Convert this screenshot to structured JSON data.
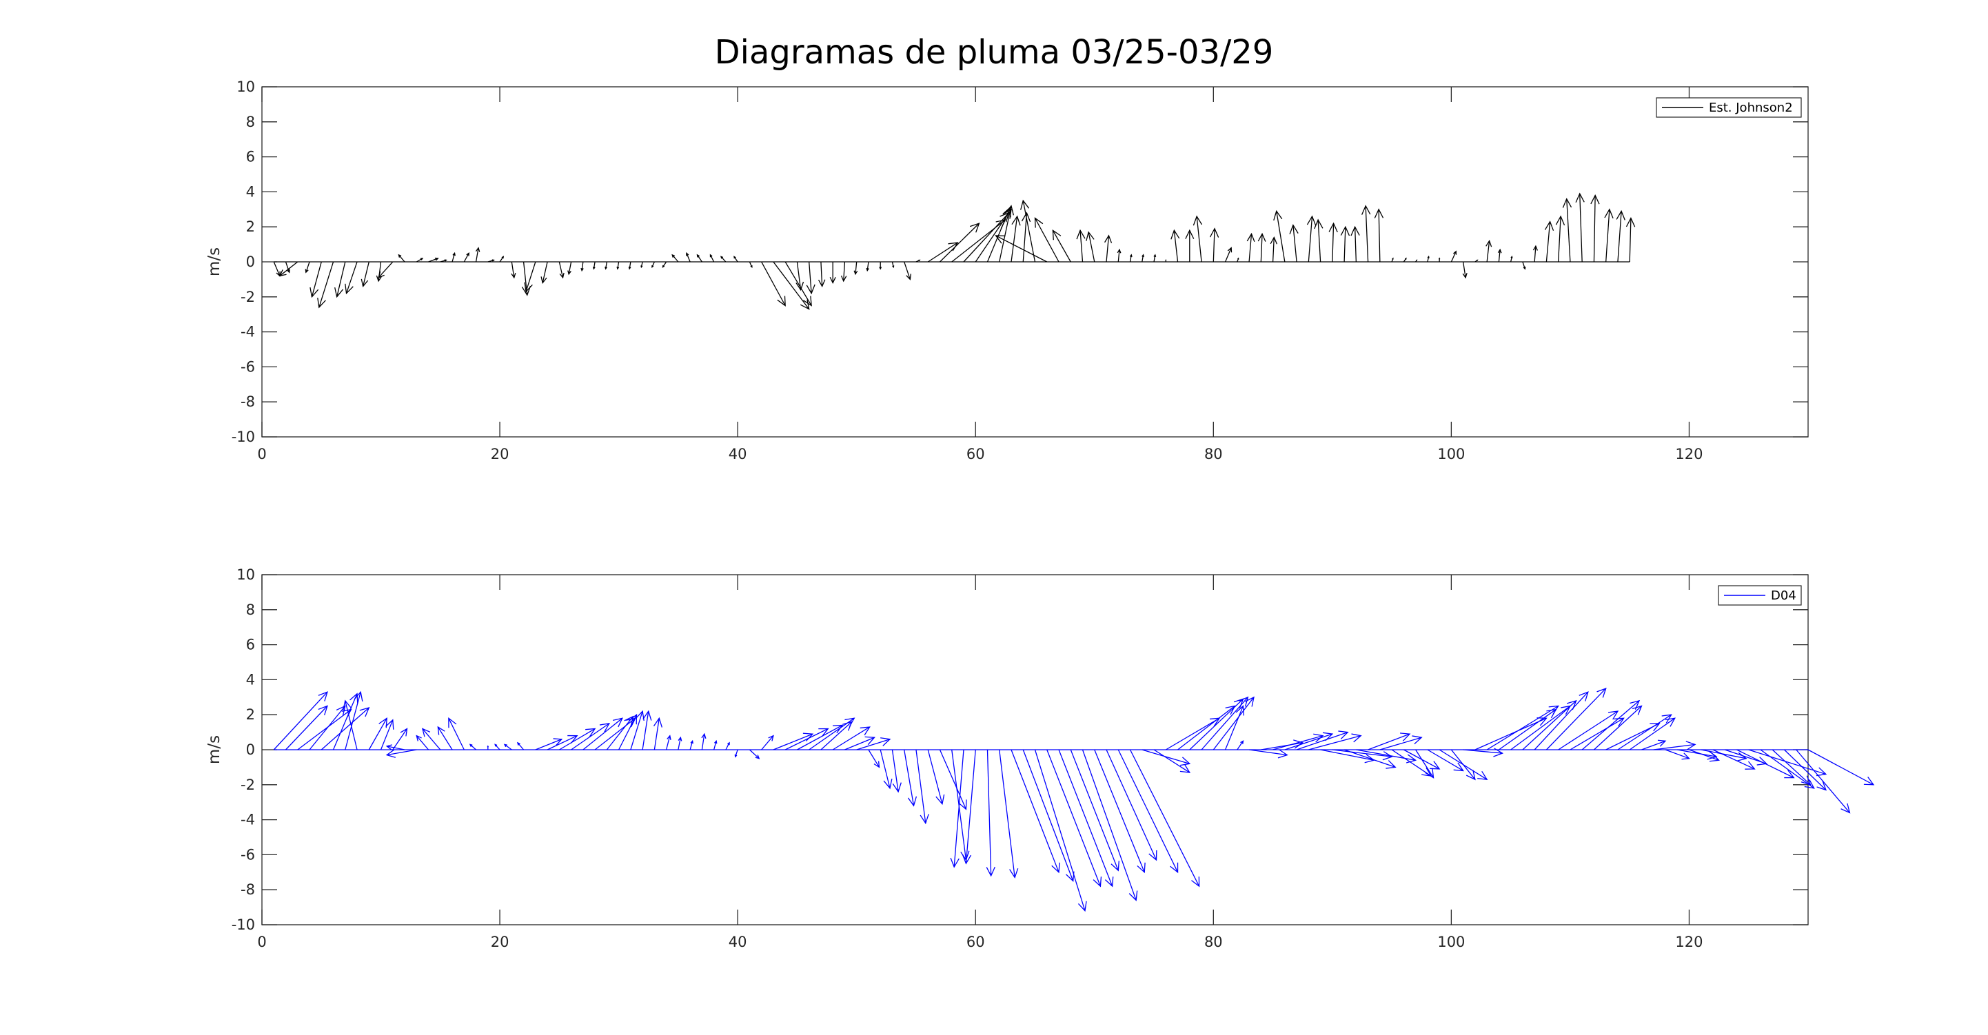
{
  "title": "Diagramas de pluma 03/25-03/29",
  "chart_data": [
    {
      "type": "quiver",
      "ylabel": "m/s",
      "xlim": [
        0,
        130
      ],
      "ylim": [
        -10,
        10
      ],
      "xticks": [
        0,
        20,
        40,
        60,
        80,
        100,
        120
      ],
      "yticks": [
        -10,
        -8,
        -6,
        -4,
        -2,
        0,
        2,
        4,
        6,
        8,
        10
      ],
      "legend": {
        "label": "Est. Johnson2",
        "location": "top-right"
      },
      "color": "#000000",
      "vectors": [
        [
          1,
          0.5,
          -0.8
        ],
        [
          2,
          0.3,
          -0.6
        ],
        [
          3,
          -1.5,
          -0.8
        ],
        [
          4,
          -0.3,
          -0.6
        ],
        [
          5,
          -0.8,
          -2.0
        ],
        [
          6,
          -1.2,
          -2.6
        ],
        [
          7,
          -0.7,
          -2.0
        ],
        [
          8,
          -0.9,
          -1.8
        ],
        [
          9,
          -0.5,
          -1.4
        ],
        [
          10,
          -0.2,
          -1.1
        ],
        [
          11,
          -1.2,
          -0.9
        ],
        [
          12,
          -0.5,
          0.4
        ],
        [
          13,
          0.5,
          0.2
        ],
        [
          14,
          0.8,
          0.2
        ],
        [
          15,
          0.5,
          0.1
        ],
        [
          16,
          0.2,
          0.5
        ],
        [
          17,
          0.4,
          0.5
        ],
        [
          18,
          0.2,
          0.8
        ],
        [
          19,
          0.5,
          0.1
        ],
        [
          20,
          0.3,
          0.3
        ],
        [
          21,
          0.2,
          -0.9
        ],
        [
          22,
          0.3,
          -1.9
        ],
        [
          23,
          -0.8,
          -1.7
        ],
        [
          24,
          -0.4,
          -1.2
        ],
        [
          25,
          0.3,
          -0.9
        ],
        [
          26,
          -0.2,
          -0.7
        ],
        [
          27,
          -0.1,
          -0.5
        ],
        [
          28,
          -0.1,
          -0.4
        ],
        [
          29,
          -0.1,
          -0.4
        ],
        [
          30,
          -0.1,
          -0.4
        ],
        [
          31,
          -0.1,
          -0.4
        ],
        [
          32,
          -0.1,
          -0.3
        ],
        [
          33,
          -0.2,
          -0.3
        ],
        [
          34,
          -0.3,
          -0.3
        ],
        [
          35,
          -0.5,
          0.4
        ],
        [
          36,
          -0.3,
          0.5
        ],
        [
          37,
          -0.4,
          0.4
        ],
        [
          38,
          -0.3,
          0.4
        ],
        [
          39,
          -0.4,
          0.3
        ],
        [
          40,
          -0.3,
          0.3
        ],
        [
          41,
          0.2,
          -0.3
        ],
        [
          42,
          2.0,
          -2.5
        ],
        [
          43,
          3.0,
          -2.7
        ],
        [
          44,
          2.2,
          -2.5
        ],
        [
          45,
          0.3,
          -1.6
        ],
        [
          46,
          0.2,
          -1.8
        ],
        [
          47,
          0.1,
          -1.4
        ],
        [
          48,
          0.0,
          -1.2
        ],
        [
          49,
          -0.1,
          -1.1
        ],
        [
          50,
          -0.1,
          -0.7
        ],
        [
          51,
          -0.1,
          -0.5
        ],
        [
          52,
          0.0,
          -0.4
        ],
        [
          53,
          0.1,
          -0.3
        ],
        [
          54,
          0.5,
          -1.0
        ],
        [
          55,
          0.3,
          0.1
        ],
        [
          56,
          2.5,
          1.1
        ],
        [
          57,
          3.3,
          2.2
        ],
        [
          58,
          4.5,
          2.4
        ],
        [
          59,
          3.8,
          2.8
        ],
        [
          60,
          3.0,
          3.0
        ],
        [
          61,
          1.9,
          3.1
        ],
        [
          62,
          1.0,
          3.2
        ],
        [
          63,
          0.5,
          2.6
        ],
        [
          64,
          0.3,
          2.8
        ],
        [
          65,
          -1.0,
          3.5
        ],
        [
          66,
          -4.3,
          1.5
        ],
        [
          67,
          -2.0,
          2.5
        ],
        [
          68,
          -1.5,
          1.8
        ],
        [
          69,
          -0.2,
          1.8
        ],
        [
          70,
          -0.5,
          1.7
        ],
        [
          71,
          0.2,
          1.5
        ],
        [
          72,
          0.1,
          0.7
        ],
        [
          73,
          0.1,
          0.4
        ],
        [
          74,
          0.1,
          0.4
        ],
        [
          75,
          0.1,
          0.4
        ],
        [
          76,
          0.0,
          0.1
        ],
        [
          77,
          -0.3,
          1.8
        ],
        [
          78,
          0.0,
          1.8
        ],
        [
          79,
          -0.4,
          2.6
        ],
        [
          80,
          0.1,
          1.9
        ],
        [
          81,
          0.5,
          0.8
        ],
        [
          82,
          0.1,
          0.2
        ],
        [
          83,
          0.2,
          1.6
        ],
        [
          84,
          0.1,
          1.6
        ],
        [
          85,
          0.1,
          1.4
        ],
        [
          86,
          -0.7,
          2.9
        ],
        [
          87,
          -0.3,
          2.1
        ],
        [
          88,
          0.3,
          2.6
        ],
        [
          89,
          -0.2,
          2.4
        ],
        [
          90,
          0.1,
          2.2
        ],
        [
          91,
          0.1,
          2.0
        ],
        [
          92,
          -0.1,
          2.0
        ],
        [
          93,
          -0.2,
          3.2
        ],
        [
          94,
          -0.1,
          3.0
        ],
        [
          95,
          0.1,
          0.2
        ],
        [
          96,
          0.2,
          0.2
        ],
        [
          97,
          0.1,
          0.1
        ],
        [
          98,
          0.1,
          0.3
        ],
        [
          99,
          0.0,
          0.2
        ],
        [
          100,
          0.4,
          0.6
        ],
        [
          101,
          0.2,
          -0.9
        ],
        [
          102,
          0.2,
          0.1
        ],
        [
          103,
          0.2,
          1.2
        ],
        [
          104,
          0.1,
          0.7
        ],
        [
          105,
          0.1,
          0.3
        ],
        [
          106,
          0.2,
          -0.4
        ],
        [
          107,
          0.1,
          0.9
        ],
        [
          108,
          0.3,
          2.3
        ],
        [
          109,
          0.2,
          2.6
        ],
        [
          110,
          -0.3,
          3.6
        ],
        [
          111,
          -0.2,
          3.9
        ],
        [
          112,
          0.1,
          3.8
        ],
        [
          113,
          0.3,
          3.0
        ],
        [
          114,
          0.3,
          2.9
        ],
        [
          115,
          0.1,
          2.5
        ]
      ]
    },
    {
      "type": "quiver",
      "ylabel": "m/s",
      "xlim": [
        0,
        130
      ],
      "ylim": [
        -10,
        10
      ],
      "xticks": [
        0,
        20,
        40,
        60,
        80,
        100,
        120
      ],
      "yticks": [
        -10,
        -8,
        -6,
        -4,
        -2,
        0,
        2,
        4,
        6,
        8,
        10
      ],
      "legend": {
        "label": "D04",
        "location": "top-right"
      },
      "color": "#0000ff",
      "vectors": [
        [
          1,
          4.5,
          3.3
        ],
        [
          2,
          3.5,
          2.5
        ],
        [
          3,
          4.5,
          2.3
        ],
        [
          4,
          3.0,
          2.5
        ],
        [
          5,
          4.0,
          2.4
        ],
        [
          6,
          2.0,
          3.2
        ],
        [
          7,
          1.3,
          3.3
        ],
        [
          8,
          -1.0,
          2.8
        ],
        [
          9,
          1.5,
          1.8
        ],
        [
          10,
          1.0,
          1.7
        ],
        [
          11,
          1.2,
          1.2
        ],
        [
          12,
          -1.5,
          0.2
        ],
        [
          13,
          -2.5,
          -0.3
        ],
        [
          14,
          -1.0,
          0.8
        ],
        [
          15,
          -1.5,
          1.2
        ],
        [
          16,
          -1.2,
          1.3
        ],
        [
          17,
          -1.3,
          1.8
        ],
        [
          18,
          -0.5,
          0.3
        ],
        [
          19,
          0.0,
          0.2
        ],
        [
          20,
          -0.4,
          0.3
        ],
        [
          21,
          -0.6,
          0.3
        ],
        [
          22,
          -0.5,
          0.4
        ],
        [
          23,
          2.2,
          0.6
        ],
        [
          24,
          2.5,
          0.8
        ],
        [
          25,
          3.0,
          1.2
        ],
        [
          26,
          3.2,
          1.5
        ],
        [
          27,
          3.3,
          1.8
        ],
        [
          28,
          3.4,
          1.8
        ],
        [
          29,
          2.2,
          1.9
        ],
        [
          30,
          1.5,
          2.0
        ],
        [
          31,
          1.0,
          2.2
        ],
        [
          32,
          0.5,
          2.2
        ],
        [
          33,
          0.4,
          1.8
        ],
        [
          34,
          0.3,
          0.8
        ],
        [
          35,
          0.2,
          0.7
        ],
        [
          36,
          0.2,
          0.5
        ],
        [
          37,
          0.2,
          0.9
        ],
        [
          38,
          0.2,
          0.5
        ],
        [
          39,
          0.3,
          0.4
        ],
        [
          40,
          -0.2,
          -0.4
        ],
        [
          41,
          0.8,
          -0.5
        ],
        [
          42,
          1.0,
          0.8
        ],
        [
          43,
          3.3,
          0.9
        ],
        [
          44,
          3.6,
          1.2
        ],
        [
          45,
          3.8,
          1.4
        ],
        [
          46,
          3.8,
          1.8
        ],
        [
          47,
          2.6,
          1.6
        ],
        [
          48,
          3.1,
          1.3
        ],
        [
          49,
          2.5,
          0.7
        ],
        [
          50,
          2.8,
          0.6
        ],
        [
          51,
          0.9,
          -1.0
        ],
        [
          52,
          0.8,
          -2.2
        ],
        [
          53,
          0.5,
          -2.4
        ],
        [
          54,
          0.8,
          -3.2
        ],
        [
          55,
          0.8,
          -4.2
        ],
        [
          56,
          1.2,
          -3.1
        ],
        [
          57,
          2.2,
          -3.4
        ],
        [
          58,
          1.2,
          -6.3
        ],
        [
          59,
          -0.8,
          -6.7
        ],
        [
          60,
          -0.8,
          -6.5
        ],
        [
          61,
          0.3,
          -7.2
        ],
        [
          62,
          1.3,
          -7.3
        ],
        [
          63,
          4.0,
          -7.0
        ],
        [
          64,
          4.2,
          -7.5
        ],
        [
          65,
          4.2,
          -9.2
        ],
        [
          66,
          4.5,
          -7.8
        ],
        [
          67,
          4.5,
          -7.8
        ],
        [
          68,
          4.0,
          -6.9
        ],
        [
          69,
          4.5,
          -8.6
        ],
        [
          70,
          4.2,
          -7.0
        ],
        [
          71,
          4.2,
          -6.3
        ],
        [
          72,
          5.0,
          -7.0
        ],
        [
          73,
          5.8,
          -7.8
        ],
        [
          74,
          4.0,
          -0.8
        ],
        [
          75,
          3.0,
          -1.3
        ],
        [
          76,
          4.5,
          1.8
        ],
        [
          77,
          4.8,
          2.5
        ],
        [
          78,
          4.5,
          2.9
        ],
        [
          79,
          3.9,
          3.0
        ],
        [
          80,
          3.4,
          3.0
        ],
        [
          81,
          1.5,
          2.5
        ],
        [
          82,
          0.5,
          0.5
        ],
        [
          83,
          3.2,
          -0.3
        ],
        [
          84,
          3.5,
          0.4
        ],
        [
          85,
          4.2,
          0.8
        ],
        [
          86,
          4.0,
          0.9
        ],
        [
          87,
          4.3,
          1.0
        ],
        [
          88,
          4.4,
          0.8
        ],
        [
          89,
          4.5,
          -0.6
        ],
        [
          90,
          5.0,
          -0.4
        ],
        [
          91,
          4.3,
          -1.0
        ],
        [
          92,
          5.0,
          -0.6
        ],
        [
          93,
          3.5,
          0.9
        ],
        [
          94,
          3.5,
          0.7
        ],
        [
          95,
          3.3,
          -1.5
        ],
        [
          96,
          3.0,
          -1.1
        ],
        [
          97,
          1.5,
          -1.6
        ],
        [
          98,
          3.0,
          -1.2
        ],
        [
          99,
          4.0,
          -1.7
        ],
        [
          100,
          2.0,
          -1.7
        ],
        [
          101,
          3.3,
          -0.2
        ],
        [
          102,
          6.0,
          1.8
        ],
        [
          103,
          6.0,
          2.5
        ],
        [
          104,
          4.8,
          2.3
        ],
        [
          105,
          5.0,
          2.5
        ],
        [
          106,
          4.5,
          2.8
        ],
        [
          107,
          4.5,
          3.3
        ],
        [
          108,
          5.0,
          3.5
        ],
        [
          109,
          5.0,
          2.2
        ],
        [
          110,
          4.5,
          1.8
        ],
        [
          111,
          4.8,
          2.8
        ],
        [
          112,
          4.0,
          2.5
        ],
        [
          113,
          4.5,
          1.5
        ],
        [
          114,
          4.5,
          2.0
        ],
        [
          115,
          3.8,
          1.8
        ],
        [
          116,
          2.0,
          0.5
        ],
        [
          117,
          3.5,
          0.3
        ],
        [
          118,
          2.0,
          -0.5
        ],
        [
          119,
          3.3,
          -0.4
        ],
        [
          120,
          2.5,
          -0.6
        ],
        [
          121,
          3.8,
          -0.5
        ],
        [
          122,
          3.5,
          -1.1
        ],
        [
          123,
          3.5,
          -0.8
        ],
        [
          124,
          4.8,
          -1.6
        ],
        [
          125,
          6.5,
          -1.4
        ],
        [
          126,
          4.5,
          -2.2
        ],
        [
          127,
          3.2,
          -2.0
        ],
        [
          128,
          3.5,
          -2.3
        ],
        [
          129,
          4.5,
          -3.6
        ],
        [
          130,
          5.5,
          -2.0
        ]
      ]
    }
  ]
}
